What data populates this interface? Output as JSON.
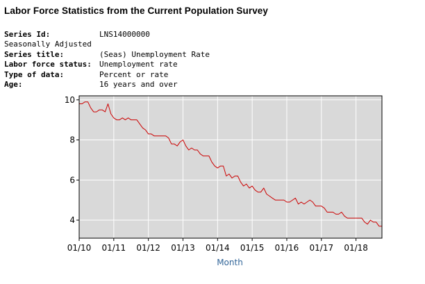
{
  "page": {
    "title": "Labor Force Statistics from the Current Population Survey"
  },
  "series_info": [
    {
      "label": "Series Id:",
      "value": "LNS14000000",
      "bold": true
    },
    {
      "label": "Seasonally Adjusted",
      "value": "",
      "bold": false
    },
    {
      "label": "Series title:",
      "value": "(Seas) Unemployment Rate",
      "bold": true
    },
    {
      "label": "Labor force status:",
      "value": "Unemployment rate",
      "bold": true
    },
    {
      "label": "Type of data:",
      "value": "Percent or rate",
      "bold": true
    },
    {
      "label": "Age:",
      "value": "16 years and over",
      "bold": true
    }
  ],
  "chart_data": {
    "type": "line",
    "title": "",
    "xlabel": "Month",
    "ylabel": "",
    "grid": true,
    "xlim": [
      "2010-01",
      "2018-10"
    ],
    "ylim": [
      3.1,
      10.2
    ],
    "y_ticks": [
      4,
      6,
      8,
      10
    ],
    "x_ticks": [
      {
        "date": "2010-01",
        "label": "01/10"
      },
      {
        "date": "2011-01",
        "label": "01/11"
      },
      {
        "date": "2012-01",
        "label": "01/12"
      },
      {
        "date": "2013-01",
        "label": "01/13"
      },
      {
        "date": "2014-01",
        "label": "01/14"
      },
      {
        "date": "2015-01",
        "label": "01/15"
      },
      {
        "date": "2016-01",
        "label": "01/16"
      },
      {
        "date": "2017-01",
        "label": "01/17"
      },
      {
        "date": "2018-01",
        "label": "01/18"
      }
    ],
    "line_color": "#cc0000",
    "plot_background": "#d9d9d9",
    "x": [
      "2010-01",
      "2010-02",
      "2010-03",
      "2010-04",
      "2010-05",
      "2010-06",
      "2010-07",
      "2010-08",
      "2010-09",
      "2010-10",
      "2010-11",
      "2010-12",
      "2011-01",
      "2011-02",
      "2011-03",
      "2011-04",
      "2011-05",
      "2011-06",
      "2011-07",
      "2011-08",
      "2011-09",
      "2011-10",
      "2011-11",
      "2011-12",
      "2012-01",
      "2012-02",
      "2012-03",
      "2012-04",
      "2012-05",
      "2012-06",
      "2012-07",
      "2012-08",
      "2012-09",
      "2012-10",
      "2012-11",
      "2012-12",
      "2013-01",
      "2013-02",
      "2013-03",
      "2013-04",
      "2013-05",
      "2013-06",
      "2013-07",
      "2013-08",
      "2013-09",
      "2013-10",
      "2013-11",
      "2013-12",
      "2014-01",
      "2014-02",
      "2014-03",
      "2014-04",
      "2014-05",
      "2014-06",
      "2014-07",
      "2014-08",
      "2014-09",
      "2014-10",
      "2014-11",
      "2014-12",
      "2015-01",
      "2015-02",
      "2015-03",
      "2015-04",
      "2015-05",
      "2015-06",
      "2015-07",
      "2015-08",
      "2015-09",
      "2015-10",
      "2015-11",
      "2015-12",
      "2016-01",
      "2016-02",
      "2016-03",
      "2016-04",
      "2016-05",
      "2016-06",
      "2016-07",
      "2016-08",
      "2016-09",
      "2016-10",
      "2016-11",
      "2016-12",
      "2017-01",
      "2017-02",
      "2017-03",
      "2017-04",
      "2017-05",
      "2017-06",
      "2017-07",
      "2017-08",
      "2017-09",
      "2017-10",
      "2017-11",
      "2017-12",
      "2018-01",
      "2018-02",
      "2018-03",
      "2018-04",
      "2018-05",
      "2018-06",
      "2018-07",
      "2018-08",
      "2018-09",
      "2018-10"
    ],
    "values": [
      9.8,
      9.8,
      9.9,
      9.9,
      9.6,
      9.4,
      9.4,
      9.5,
      9.5,
      9.4,
      9.8,
      9.3,
      9.1,
      9.0,
      9.0,
      9.1,
      9.0,
      9.1,
      9.0,
      9.0,
      9.0,
      8.8,
      8.6,
      8.5,
      8.3,
      8.3,
      8.2,
      8.2,
      8.2,
      8.2,
      8.2,
      8.1,
      7.8,
      7.8,
      7.7,
      7.9,
      8.0,
      7.7,
      7.5,
      7.6,
      7.5,
      7.5,
      7.3,
      7.2,
      7.2,
      7.2,
      6.9,
      6.7,
      6.6,
      6.7,
      6.7,
      6.2,
      6.3,
      6.1,
      6.2,
      6.2,
      5.9,
      5.7,
      5.8,
      5.6,
      5.7,
      5.5,
      5.4,
      5.4,
      5.6,
      5.3,
      5.2,
      5.1,
      5.0,
      5.0,
      5.0,
      5.0,
      4.9,
      4.9,
      5.0,
      5.1,
      4.8,
      4.9,
      4.8,
      4.9,
      5.0,
      4.9,
      4.7,
      4.7,
      4.7,
      4.6,
      4.4,
      4.4,
      4.4,
      4.3,
      4.3,
      4.4,
      4.2,
      4.1,
      4.1,
      4.1,
      4.1,
      4.1,
      4.1,
      3.9,
      3.8,
      4.0,
      3.9,
      3.9,
      3.7,
      3.7
    ]
  }
}
